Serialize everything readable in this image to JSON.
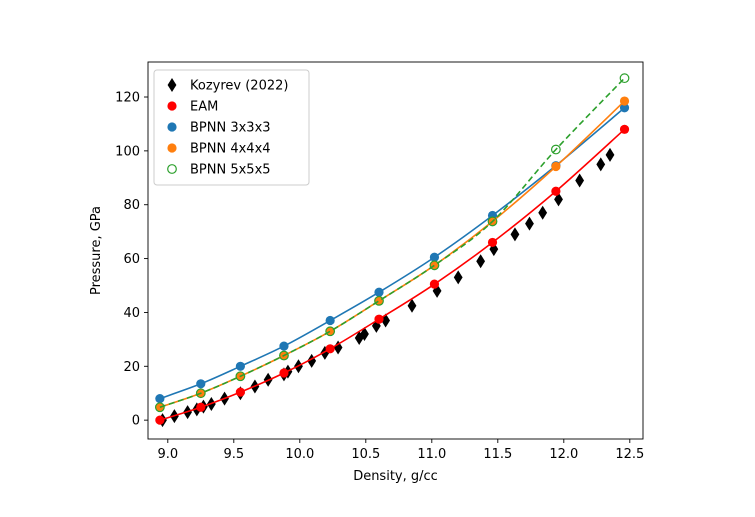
{
  "chart_data": {
    "type": "scatter",
    "title": "",
    "xlabel": "Density, g/cc",
    "ylabel": "Pressure, GPa",
    "xlim": [
      8.85,
      12.6
    ],
    "ylim": [
      -7,
      133
    ],
    "xticks": [
      "9.0",
      "9.5",
      "10.0",
      "10.5",
      "11.0",
      "11.5",
      "12.0",
      "12.5"
    ],
    "yticks": [
      "0",
      "20",
      "40",
      "60",
      "80",
      "100",
      "120"
    ],
    "legend_position": "upper-left",
    "series": [
      {
        "name": "Kozyrev (2022)",
        "marker": "thin-diamond",
        "color": "#000000",
        "line": false,
        "x": [
          8.96,
          9.05,
          9.15,
          9.22,
          9.27,
          9.33,
          9.43,
          9.55,
          9.66,
          9.76,
          9.88,
          9.91,
          9.99,
          10.09,
          10.19,
          10.29,
          10.45,
          10.49,
          10.58,
          10.65,
          10.85,
          11.04,
          11.2,
          11.37,
          11.47,
          11.63,
          11.74,
          11.84,
          11.96,
          12.12,
          12.28,
          12.35
        ],
        "y": [
          0,
          1.5,
          3,
          4,
          5,
          6,
          8,
          10,
          12.5,
          15,
          17,
          18,
          20,
          22,
          25,
          27,
          30.5,
          32,
          35,
          37,
          42.5,
          48,
          53,
          59,
          63.5,
          69,
          73,
          77,
          82,
          89,
          95,
          98.5
        ]
      },
      {
        "name": "EAM",
        "marker": "circle",
        "color": "#ff0000",
        "line": true,
        "x": [
          8.94,
          9.25,
          9.55,
          9.88,
          10.23,
          10.6,
          11.02,
          11.46,
          11.94,
          12.46
        ],
        "y": [
          0,
          4.8,
          10.4,
          17.5,
          26.5,
          37.5,
          50.5,
          66,
          85,
          108
        ]
      },
      {
        "name": "BPNN 3x3x3",
        "marker": "circle",
        "color": "#1f77b4",
        "line": true,
        "x": [
          8.94,
          9.25,
          9.55,
          9.88,
          10.23,
          10.6,
          11.02,
          11.46,
          11.94,
          12.46
        ],
        "y": [
          8,
          13.5,
          20,
          27.5,
          37,
          47.5,
          60.5,
          76,
          94.5,
          116
        ]
      },
      {
        "name": "BPNN 4x4x4",
        "marker": "circle",
        "color": "#ff7f0e",
        "line": true,
        "x": [
          8.94,
          9.25,
          9.55,
          9.88,
          10.23,
          10.6,
          11.02,
          11.46,
          11.94,
          12.46
        ],
        "y": [
          4.8,
          10,
          16.3,
          24,
          33,
          44.3,
          57.5,
          73.8,
          94.2,
          118.5
        ]
      },
      {
        "name": "BPNN 5x5x5",
        "marker": "open-circle",
        "color": "#2ca02c",
        "line": "dashed",
        "x": [
          8.94,
          9.25,
          9.55,
          9.88,
          10.23,
          10.6,
          11.02,
          11.46,
          11.94,
          12.46
        ],
        "y": [
          4.8,
          10,
          16.3,
          24,
          33,
          44.3,
          57.5,
          73.8,
          100.5,
          127
        ]
      }
    ]
  }
}
